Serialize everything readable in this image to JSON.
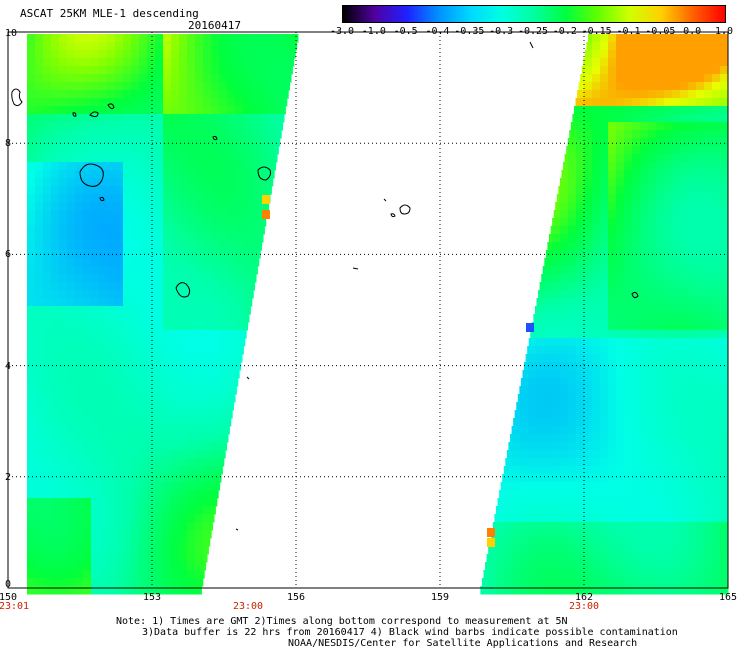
{
  "header": {
    "title": "ASCAT 25KM MLE-1 descending",
    "date": "20160417"
  },
  "colorbar": {
    "labels": [
      "-3.0",
      "-1.0",
      "-0.5",
      "-0.4",
      "-0.35",
      "-0.3",
      "-0.25",
      "-0.2",
      "-0.15",
      "-0.1",
      "-0.05",
      "0.0",
      "1.0"
    ],
    "colors": [
      "#000000",
      "#5000a0",
      "#2020ff",
      "#0090ff",
      "#00d8ff",
      "#00ffe0",
      "#00ffa0",
      "#00ff40",
      "#60ff00",
      "#d0ff00",
      "#ffd000",
      "#ff6000",
      "#ff0000"
    ]
  },
  "map": {
    "lat_labels": [
      "10",
      "8",
      "6",
      "4",
      "2",
      "0"
    ],
    "lon_labels": [
      "150",
      "153",
      "156",
      "159",
      "162",
      "165"
    ],
    "time_labels": [
      "23:01",
      "23:00",
      "23:00"
    ],
    "lat_range": [
      0,
      10
    ],
    "lon_range": [
      150,
      165
    ]
  },
  "notes": {
    "line1": "Note: 1) Times are GMT 2)Times along bottom correspond to measurement at 5N",
    "line2": "3)Data buffer is 22 hrs from 20160417 4) Black wind barbs indicate possible contamination",
    "line3": "NOAA/NESDIS/Center for Satellite Applications and Research"
  }
}
